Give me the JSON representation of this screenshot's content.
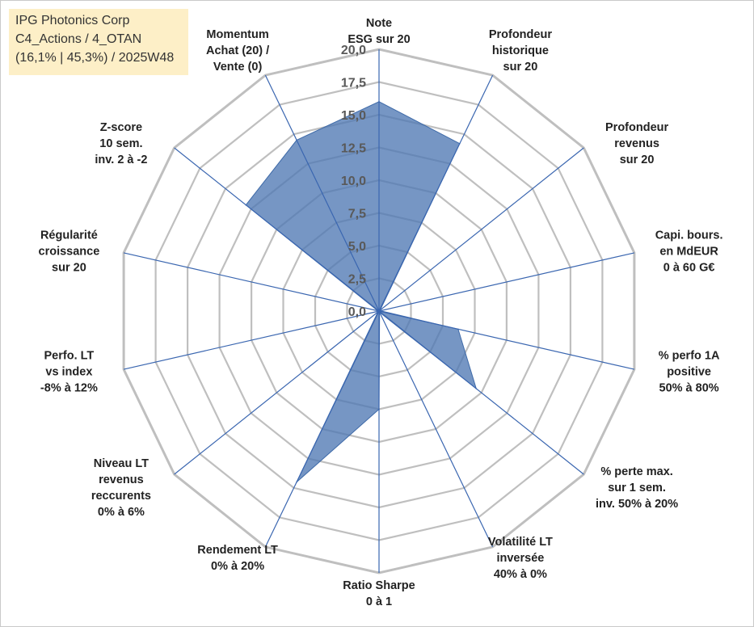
{
  "info_box": {
    "line1": "IPG Photonics Corp",
    "line2": "C4_Actions / 4_OTAN",
    "line3": "(16,1% | 45,3%) / 2025W48"
  },
  "colors": {
    "grid": "#bfbfbf",
    "spoke": "#3a66b0",
    "fill": "#4f79b3",
    "fill_stroke": "#3e6aa8",
    "tick": "#595959",
    "label": "#222222",
    "info_bg": "#fdefc7"
  },
  "chart_data": {
    "type": "radar",
    "title": "",
    "rmin": 0,
    "rmax": 20,
    "ticks": [
      "0,0",
      "2,5",
      "5,0",
      "7,5",
      "10,0",
      "12,5",
      "15,0",
      "17,5",
      "20,0"
    ],
    "axes": [
      {
        "lines": [
          "Note",
          "ESG sur 20"
        ]
      },
      {
        "lines": [
          "Profondeur",
          "historique",
          "sur 20"
        ]
      },
      {
        "lines": [
          "Profondeur",
          "revenus",
          "sur 20"
        ]
      },
      {
        "lines": [
          "Capi. bours.",
          "en MdEUR",
          "0 à 60 G€"
        ]
      },
      {
        "lines": [
          "% perfo 1A",
          "positive",
          "50% à 80%"
        ]
      },
      {
        "lines": [
          "% perte max.",
          "sur 1 sem.",
          "inv. 50% à 20%"
        ]
      },
      {
        "lines": [
          "Volatilité LT",
          "inversée",
          "40% à 0%"
        ]
      },
      {
        "lines": [
          "Ratio Sharpe",
          "0 à 1"
        ]
      },
      {
        "lines": [
          "Rendement LT",
          "0% à 20%"
        ]
      },
      {
        "lines": [
          "Niveau LT",
          "revenus",
          "reccurents",
          "0% à 6%"
        ]
      },
      {
        "lines": [
          "Perfo. LT",
          "vs index",
          "-8% à 12%"
        ]
      },
      {
        "lines": [
          "Régularité",
          "croissance",
          "sur 20"
        ]
      },
      {
        "lines": [
          "Z-score",
          "10 sem.",
          "inv. 2 à -2"
        ]
      },
      {
        "lines": [
          "Momentum",
          "Achat (20) /",
          "Vente (0)"
        ]
      }
    ],
    "series": [
      {
        "name": "IPG Photonics Corp",
        "values": [
          16.0,
          14.2,
          0.1,
          0.1,
          6.2,
          9.5,
          0.1,
          7.5,
          14.5,
          0.1,
          0.1,
          0.1,
          13.0,
          14.5
        ]
      }
    ]
  }
}
